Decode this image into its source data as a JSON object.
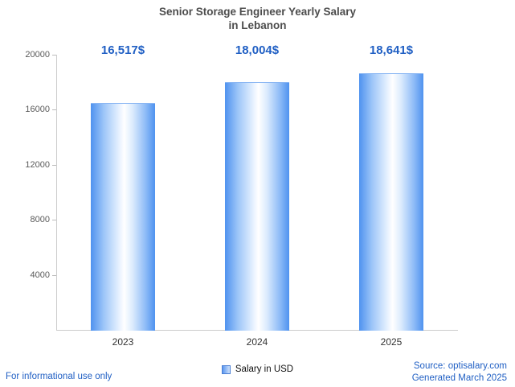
{
  "chart_data": {
    "type": "bar",
    "title_line1": "Senior Storage Engineer Yearly Salary",
    "title_line2": "in Lebanon",
    "categories": [
      "2023",
      "2024",
      "2025"
    ],
    "values": [
      16517,
      18004,
      18641
    ],
    "value_labels": [
      "16,517$",
      "18,004$",
      "18,641$"
    ],
    "ylim": [
      0,
      20000
    ],
    "yticks": [
      4000,
      8000,
      12000,
      16000,
      20000
    ],
    "ytick_labels": [
      "4000",
      "8000",
      "12000",
      "16000",
      "20000"
    ],
    "legend_label": "Salary in USD",
    "grid": "off",
    "legend_position": "bottom-center",
    "accent_color": "#2160c4",
    "bar_edge_color": "#4f92ef"
  },
  "footer": {
    "left_note": "For informational use only",
    "source": "Source: optisalary.com",
    "generated": "Generated March 2025"
  }
}
